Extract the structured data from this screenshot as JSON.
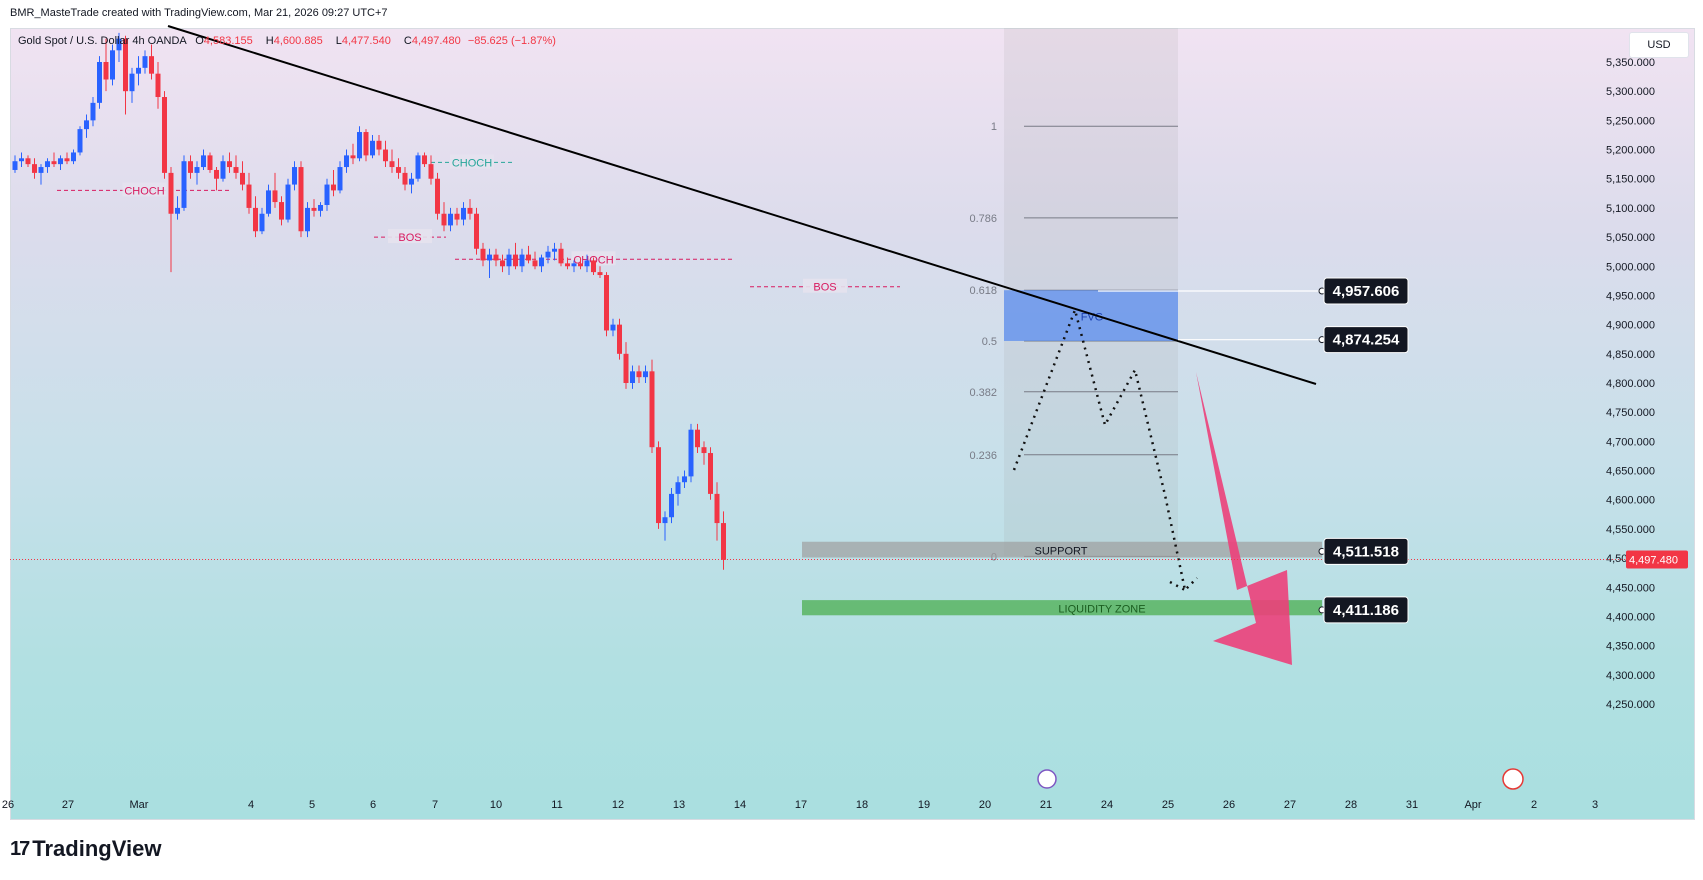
{
  "header": {
    "credit": "BMR_MasteTrade created with TradingView.com, Mar 21, 2026 09:27 UTC+7"
  },
  "legend": {
    "symbol": "Gold Spot / U.S. Dollar",
    "interval": "4h",
    "source": "OANDA",
    "open_label": "O",
    "open": "4,583.155",
    "high_label": "H",
    "high": "4,600.885",
    "low_label": "L",
    "low": "4,477.540",
    "close_label": "C",
    "close": "4,497.480",
    "change": "−85.625 (−1.87%)"
  },
  "currency": "USD",
  "brand": {
    "name": "TradingView"
  },
  "colors": {
    "up": "#2962ff",
    "down": "#f23645",
    "choch_red": "#d81b60",
    "choch_green": "#26a69a",
    "fvg": "#5b8def",
    "support": "#9e9e9e",
    "liquidity": "#4caf50",
    "arrow": "#ec407a",
    "tag_bg": "#131722"
  },
  "chart_data": {
    "type": "candlestick",
    "title": "Gold Spot / U.S. Dollar",
    "y_axis": {
      "min": 4200,
      "max": 5400,
      "ticks": [
        "5,350.000",
        "5,300.000",
        "5,250.000",
        "5,200.000",
        "5,150.000",
        "5,100.000",
        "5,050.000",
        "5,000.000",
        "4,950.000",
        "4,900.000",
        "4,850.000",
        "4,800.000",
        "4,750.000",
        "4,700.000",
        "4,650.000",
        "4,600.000",
        "4,550.000",
        "4,500.000",
        "4,450.000",
        "4,400.000",
        "4,350.000",
        "4,300.000",
        "4,250.000"
      ]
    },
    "x_axis": {
      "ticks": [
        "26",
        "27",
        "Mar",
        "4",
        "5",
        "6",
        "7",
        "10",
        "11",
        "12",
        "13",
        "14",
        "17",
        "18",
        "19",
        "20",
        "21",
        "24",
        "25",
        "26",
        "27",
        "28",
        "31",
        "Apr",
        "2",
        "3"
      ]
    },
    "last_price": "4,497.480",
    "candles": [
      [
        5165,
        5190,
        5160,
        5180
      ],
      [
        5180,
        5195,
        5170,
        5185
      ],
      [
        5185,
        5190,
        5170,
        5175
      ],
      [
        5175,
        5185,
        5150,
        5160
      ],
      [
        5160,
        5175,
        5140,
        5170
      ],
      [
        5170,
        5185,
        5160,
        5180
      ],
      [
        5180,
        5195,
        5170,
        5175
      ],
      [
        5175,
        5190,
        5165,
        5185
      ],
      [
        5185,
        5195,
        5175,
        5180
      ],
      [
        5180,
        5200,
        5175,
        5195
      ],
      [
        5195,
        5240,
        5190,
        5235
      ],
      [
        5235,
        5260,
        5220,
        5250
      ],
      [
        5250,
        5290,
        5240,
        5280
      ],
      [
        5280,
        5360,
        5270,
        5350
      ],
      [
        5350,
        5390,
        5300,
        5320
      ],
      [
        5320,
        5380,
        5310,
        5370
      ],
      [
        5370,
        5400,
        5350,
        5390
      ],
      [
        5390,
        5395,
        5260,
        5300
      ],
      [
        5300,
        5340,
        5280,
        5330
      ],
      [
        5330,
        5360,
        5310,
        5340
      ],
      [
        5340,
        5370,
        5330,
        5360
      ],
      [
        5360,
        5380,
        5320,
        5330
      ],
      [
        5330,
        5350,
        5270,
        5290
      ],
      [
        5290,
        5300,
        5150,
        5160
      ],
      [
        5160,
        5170,
        4990,
        5090
      ],
      [
        5090,
        5120,
        5080,
        5100
      ],
      [
        5100,
        5190,
        5095,
        5180
      ],
      [
        5180,
        5190,
        5150,
        5160
      ],
      [
        5160,
        5180,
        5140,
        5170
      ],
      [
        5170,
        5200,
        5165,
        5190
      ],
      [
        5190,
        5195,
        5160,
        5165
      ],
      [
        5165,
        5170,
        5130,
        5150
      ],
      [
        5150,
        5190,
        5145,
        5180
      ],
      [
        5180,
        5195,
        5160,
        5170
      ],
      [
        5170,
        5190,
        5150,
        5160
      ],
      [
        5160,
        5180,
        5130,
        5140
      ],
      [
        5140,
        5160,
        5090,
        5100
      ],
      [
        5100,
        5120,
        5050,
        5060
      ],
      [
        5060,
        5100,
        5055,
        5090
      ],
      [
        5090,
        5140,
        5085,
        5130
      ],
      [
        5130,
        5160,
        5100,
        5110
      ],
      [
        5110,
        5120,
        5070,
        5080
      ],
      [
        5080,
        5150,
        5075,
        5140
      ],
      [
        5140,
        5180,
        5130,
        5170
      ],
      [
        5170,
        5180,
        5050,
        5060
      ],
      [
        5060,
        5110,
        5050,
        5100
      ],
      [
        5100,
        5115,
        5085,
        5095
      ],
      [
        5095,
        5110,
        5085,
        5105
      ],
      [
        5105,
        5150,
        5095,
        5140
      ],
      [
        5140,
        5165,
        5120,
        5130
      ],
      [
        5130,
        5180,
        5125,
        5170
      ],
      [
        5170,
        5200,
        5160,
        5190
      ],
      [
        5190,
        5210,
        5175,
        5185
      ],
      [
        5185,
        5240,
        5180,
        5230
      ],
      [
        5230,
        5235,
        5180,
        5190
      ],
      [
        5190,
        5225,
        5185,
        5215
      ],
      [
        5215,
        5225,
        5190,
        5200
      ],
      [
        5200,
        5215,
        5170,
        5180
      ],
      [
        5180,
        5200,
        5160,
        5170
      ],
      [
        5170,
        5185,
        5150,
        5160
      ],
      [
        5160,
        5170,
        5130,
        5140
      ],
      [
        5140,
        5160,
        5125,
        5150
      ],
      [
        5150,
        5195,
        5145,
        5190
      ],
      [
        5190,
        5195,
        5170,
        5175
      ],
      [
        5175,
        5190,
        5140,
        5150
      ],
      [
        5150,
        5160,
        5080,
        5090
      ],
      [
        5090,
        5110,
        5060,
        5070
      ],
      [
        5070,
        5100,
        5060,
        5090
      ],
      [
        5090,
        5100,
        5070,
        5080
      ],
      [
        5080,
        5110,
        5070,
        5100
      ],
      [
        5100,
        5115,
        5080,
        5090
      ],
      [
        5090,
        5100,
        5020,
        5030
      ],
      [
        5030,
        5040,
        5000,
        5010
      ],
      [
        5010,
        5030,
        4980,
        5020
      ],
      [
        5020,
        5030,
        5000,
        5010
      ],
      [
        5010,
        5020,
        4990,
        5000
      ],
      [
        5000,
        5030,
        4985,
        5020
      ],
      [
        5020,
        5040,
        4995,
        5000
      ],
      [
        5000,
        5030,
        4990,
        5020
      ],
      [
        5020,
        5035,
        5005,
        5010
      ],
      [
        5010,
        5025,
        4995,
        5000
      ],
      [
        5000,
        5020,
        4990,
        5015
      ],
      [
        5015,
        5035,
        5005,
        5025
      ],
      [
        5025,
        5040,
        5010,
        5030
      ],
      [
        5030,
        5040,
        5000,
        5005
      ],
      [
        5005,
        5015,
        4995,
        5000
      ],
      [
        5000,
        5010,
        4990,
        5005
      ],
      [
        5005,
        5015,
        4995,
        5000
      ],
      [
        5000,
        5020,
        4990,
        5010
      ],
      [
        5010,
        5015,
        4985,
        4990
      ],
      [
        4990,
        5000,
        4980,
        4985
      ],
      [
        4985,
        4990,
        4880,
        4890
      ],
      [
        4890,
        4910,
        4880,
        4900
      ],
      [
        4900,
        4910,
        4840,
        4850
      ],
      [
        4850,
        4870,
        4790,
        4800
      ],
      [
        4800,
        4830,
        4790,
        4820
      ],
      [
        4820,
        4830,
        4800,
        4810
      ],
      [
        4810,
        4830,
        4800,
        4820
      ],
      [
        4820,
        4840,
        4680,
        4690
      ],
      [
        4690,
        4700,
        4550,
        4560
      ],
      [
        4560,
        4580,
        4530,
        4570
      ],
      [
        4570,
        4620,
        4560,
        4610
      ],
      [
        4610,
        4640,
        4590,
        4630
      ],
      [
        4630,
        4650,
        4620,
        4640
      ],
      [
        4640,
        4730,
        4630,
        4720
      ],
      [
        4720,
        4730,
        4680,
        4690
      ],
      [
        4690,
        4700,
        4660,
        4680
      ],
      [
        4680,
        4690,
        4600,
        4610
      ],
      [
        4610,
        4630,
        4530,
        4560
      ],
      [
        4560,
        4580,
        4480,
        4497
      ]
    ],
    "annotations": [
      {
        "text": "CHOCH",
        "level": 5130,
        "color": "red"
      },
      {
        "text": "CHOCH",
        "level": 5178,
        "color": "green"
      },
      {
        "text": "BOS",
        "level": 5050,
        "color": "red"
      },
      {
        "text": "CHOCH",
        "level": 5012,
        "color": "red"
      },
      {
        "text": "BOS",
        "level": 4965,
        "color": "red"
      }
    ],
    "fibonacci": {
      "levels": [
        "1",
        "0.786",
        "0.618",
        "0.5",
        "0.382",
        "0.236",
        "0"
      ],
      "values": [
        5240,
        5083,
        4959,
        4872,
        4785,
        4677,
        4503
      ]
    },
    "zones": {
      "fvg_label": "FVG",
      "fvg_top": 4959,
      "fvg_bottom": 4872,
      "support_label": "SUPPORT",
      "support_top": 4528,
      "support_bottom": 4501,
      "liquidity_label": "LIQUIDITY ZONE",
      "liquidity_top": 4428,
      "liquidity_bottom": 4402
    },
    "price_tags": [
      "4,957.606",
      "4,874.254",
      "4,511.518",
      "4,411.186"
    ],
    "price_tag_values": [
      4957.606,
      4874.254,
      4511.518,
      4411.186
    ]
  }
}
